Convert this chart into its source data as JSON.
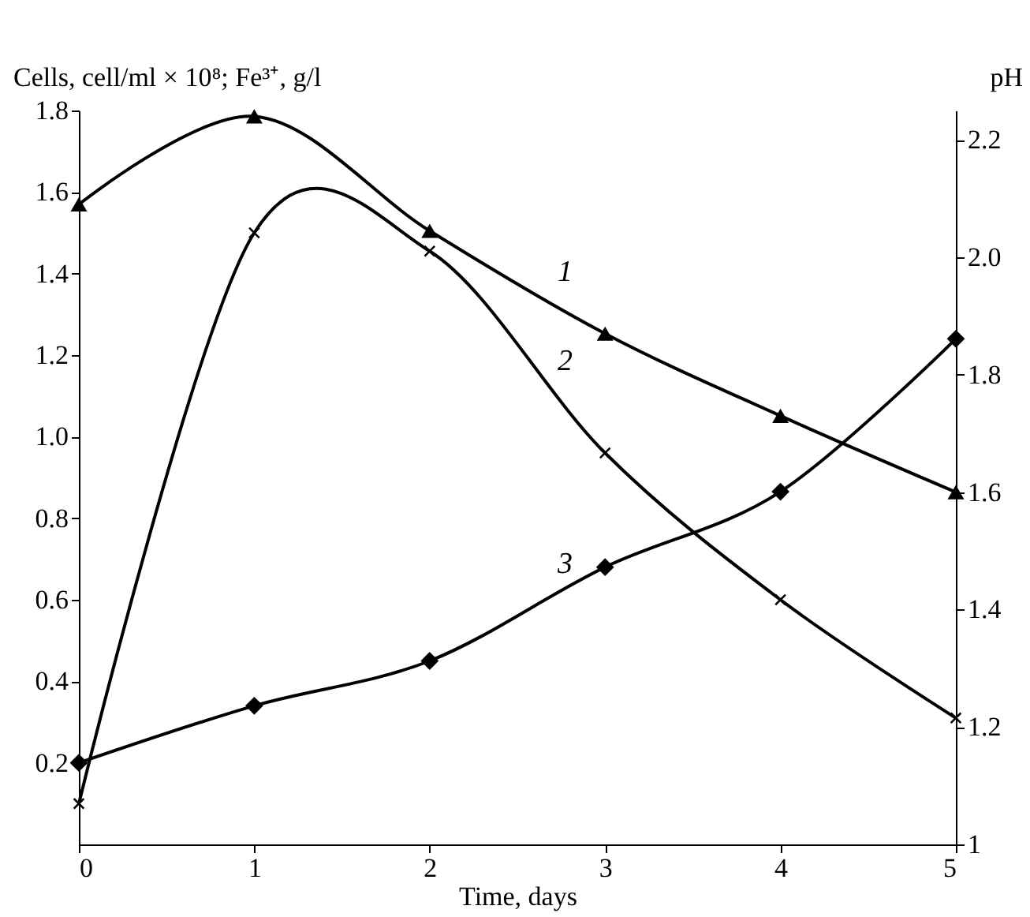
{
  "chart_data": {
    "type": "line",
    "xlabel": "Time, days",
    "ylabel": "Cells, cell/ml × 10⁸; Fe³⁺, g/l",
    "y2label": "pH",
    "x": [
      0,
      1,
      2,
      3,
      4,
      5
    ],
    "xlim": [
      0,
      5
    ],
    "xticks": [
      0,
      1,
      2,
      3,
      4,
      5
    ],
    "ylim": [
      0,
      1.8
    ],
    "yticks": [
      0.2,
      0.4,
      0.6,
      0.8,
      {
        "value": 1,
        "label": "1.0"
      },
      1.2,
      1.4,
      1.6,
      1.8
    ],
    "y2lim": [
      1,
      2.25
    ],
    "y2ticks": [
      1,
      1.2,
      1.4,
      1.6,
      1.8,
      {
        "value": 2,
        "label": "2.0"
      },
      2.2
    ],
    "grid": false,
    "series": [
      {
        "name": "1",
        "color": "#000000",
        "axis": "y2",
        "marker": "triangle",
        "values": [
          2.09,
          2.24,
          2.045,
          1.87,
          1.73,
          1.6
        ]
      },
      {
        "name": "2",
        "color": "#000000",
        "marker": "cross",
        "values": [
          0.1,
          1.5,
          1.455,
          0.96,
          0.6,
          0.31
        ]
      },
      {
        "name": "3",
        "color": "#000000",
        "marker": "diamond",
        "values": [
          0.2,
          0.34,
          0.45,
          0.68,
          0.865,
          1.24
        ]
      }
    ]
  }
}
